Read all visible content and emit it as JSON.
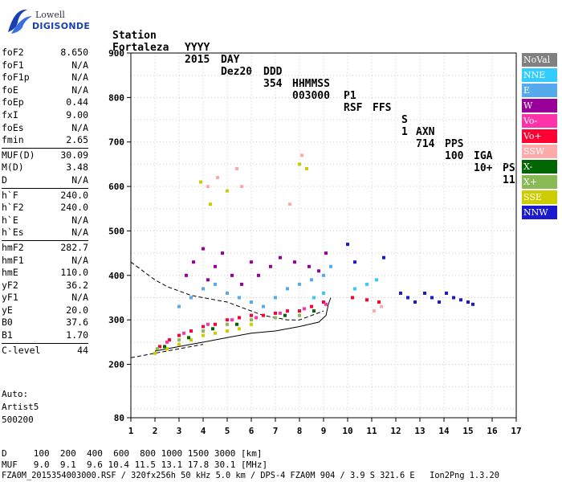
{
  "logo": {
    "line1": "Lowell",
    "line2": "DIGISONDE"
  },
  "header": {
    "labels": [
      "Station",
      "YYYY",
      "DAY",
      "DDD",
      "HHMMSS",
      "P1",
      "FFS",
      "S",
      "AXN",
      "PPS",
      "IGA",
      "PS"
    ],
    "values": [
      "Fortaleza",
      "2015",
      "Dez20",
      "354",
      "003000",
      "RSF",
      "",
      "1",
      "714",
      "100",
      "10+",
      "11"
    ]
  },
  "params": [
    {
      "label": "foF2",
      "value": "8.650"
    },
    {
      "label": "foF1",
      "value": "N/A"
    },
    {
      "label": "foF1p",
      "value": "N/A"
    },
    {
      "label": "foE",
      "value": "N/A"
    },
    {
      "label": "foEp",
      "value": "0.44"
    },
    {
      "label": "fxI",
      "value": "9.00"
    },
    {
      "label": "foEs",
      "value": "N/A"
    },
    {
      "label": "fmin",
      "value": "2.65"
    },
    {
      "label": "MUF(D)",
      "value": "30.09"
    },
    {
      "label": "M(D)",
      "value": "3.48"
    },
    {
      "label": "D",
      "value": "N/A"
    },
    {
      "label": "h`F",
      "value": "240.0"
    },
    {
      "label": "h`F2",
      "value": "240.0"
    },
    {
      "label": "h`E",
      "value": "N/A"
    },
    {
      "label": "h`Es",
      "value": "N/A"
    },
    {
      "label": "hmF2",
      "value": "282.7"
    },
    {
      "label": "hmF1",
      "value": "N/A"
    },
    {
      "label": "hmE",
      "value": "110.0"
    },
    {
      "label": "yF2",
      "value": "36.2"
    },
    {
      "label": "yF1",
      "value": "N/A"
    },
    {
      "label": "yE",
      "value": "20.0"
    },
    {
      "label": "B0",
      "value": "37.6"
    },
    {
      "label": "B1",
      "value": "1.70"
    },
    {
      "label": "C-level",
      "value": "44"
    }
  ],
  "auto": {
    "line1": "Auto:",
    "line2": "Artist5",
    "line3": "500200"
  },
  "footer": {
    "d_line": "D     100  200  400  600  800 1000 1500 3000 [km]",
    "muf_line": "MUF   9.0  9.1  9.6 10.4 11.5 13.1 17.8 30.1 [MHz]",
    "file_line": "FZA0M_2015354003000.RSF / 320fx256h 50 kHz 5.0 km / DPS-4 FZA0M 904 / 3.9 S 321.6 E   Ion2Png 1.3.20"
  },
  "legend": [
    {
      "label": "NoVal",
      "color": "#808080"
    },
    {
      "label": "NNE",
      "color": "#33ccff"
    },
    {
      "label": "E",
      "color": "#55aaee"
    },
    {
      "label": "W",
      "color": "#990099"
    },
    {
      "label": "Vo-",
      "color": "#ff33aa"
    },
    {
      "label": "Vo+",
      "color": "#ff0033"
    },
    {
      "label": "SSW",
      "color": "#ffaaaa"
    },
    {
      "label": "X-",
      "color": "#006600"
    },
    {
      "label": "X+",
      "color": "#88bb55"
    },
    {
      "label": "SSE",
      "color": "#cccc00"
    },
    {
      "label": "NNW",
      "color": "#1a1acc"
    }
  ],
  "chart_data": {
    "type": "scatter",
    "title": "",
    "xlabel": "",
    "ylabel": "",
    "xlim": [
      1,
      17
    ],
    "ylim": [
      80,
      900
    ],
    "x_ticks": [
      1,
      2,
      3,
      4,
      5,
      6,
      7,
      8,
      9,
      10,
      11,
      12,
      13,
      14,
      15,
      16,
      17
    ],
    "y_ticks": [
      80,
      200,
      300,
      400,
      500,
      600,
      700,
      800,
      900
    ],
    "grid": true,
    "series": [
      {
        "name": "W",
        "color": "#990099",
        "points": [
          [
            3.3,
            400
          ],
          [
            3.6,
            430
          ],
          [
            4.0,
            460
          ],
          [
            4.2,
            390
          ],
          [
            4.5,
            420
          ],
          [
            4.8,
            450
          ],
          [
            5.2,
            400
          ],
          [
            5.6,
            380
          ],
          [
            6.0,
            430
          ],
          [
            6.3,
            400
          ],
          [
            6.8,
            420
          ],
          [
            7.2,
            440
          ],
          [
            7.8,
            430
          ],
          [
            8.4,
            420
          ],
          [
            8.8,
            410
          ],
          [
            9.1,
            450
          ]
        ]
      },
      {
        "name": "E",
        "color": "#55aaee",
        "points": [
          [
            3.0,
            330
          ],
          [
            3.5,
            350
          ],
          [
            4.0,
            370
          ],
          [
            4.5,
            380
          ],
          [
            5.0,
            360
          ],
          [
            5.5,
            350
          ],
          [
            6.0,
            340
          ],
          [
            6.5,
            330
          ],
          [
            7.0,
            350
          ],
          [
            7.5,
            370
          ],
          [
            8.0,
            380
          ],
          [
            8.5,
            390
          ],
          [
            9.0,
            400
          ],
          [
            9.3,
            420
          ]
        ]
      },
      {
        "name": "NNE",
        "color": "#33ccff",
        "points": [
          [
            8.6,
            350
          ],
          [
            9.0,
            360
          ],
          [
            10.3,
            370
          ],
          [
            10.8,
            380
          ],
          [
            11.2,
            390
          ]
        ]
      },
      {
        "name": "Vo+",
        "color": "#ff0033",
        "points": [
          [
            2.2,
            240
          ],
          [
            2.6,
            255
          ],
          [
            3.0,
            265
          ],
          [
            3.5,
            275
          ],
          [
            4.0,
            285
          ],
          [
            4.5,
            290
          ],
          [
            5.0,
            300
          ],
          [
            5.5,
            305
          ],
          [
            6.0,
            310
          ],
          [
            6.5,
            310
          ],
          [
            7.0,
            315
          ],
          [
            7.5,
            320
          ],
          [
            8.0,
            320
          ],
          [
            8.5,
            330
          ],
          [
            9.0,
            340
          ],
          [
            10.2,
            350
          ],
          [
            10.8,
            345
          ],
          [
            11.3,
            340
          ]
        ]
      },
      {
        "name": "Vo-",
        "color": "#ff33aa",
        "points": [
          [
            2.5,
            250
          ],
          [
            3.2,
            270
          ],
          [
            4.2,
            290
          ],
          [
            5.2,
            300
          ],
          [
            6.2,
            305
          ],
          [
            7.2,
            315
          ],
          [
            8.2,
            325
          ],
          [
            9.1,
            335
          ]
        ]
      },
      {
        "name": "SSE",
        "color": "#cccc00",
        "points": [
          [
            2.0,
            225
          ],
          [
            2.5,
            235
          ],
          [
            3.0,
            245
          ],
          [
            3.5,
            255
          ],
          [
            4.0,
            265
          ],
          [
            4.5,
            270
          ],
          [
            5.0,
            275
          ],
          [
            5.5,
            280
          ],
          [
            6.0,
            290
          ],
          [
            3.9,
            610
          ],
          [
            4.3,
            560
          ],
          [
            5.0,
            590
          ],
          [
            8.0,
            650
          ],
          [
            8.3,
            640
          ]
        ]
      },
      {
        "name": "X+",
        "color": "#88bb55",
        "points": [
          [
            2.1,
            235
          ],
          [
            3.0,
            255
          ],
          [
            4.0,
            275
          ],
          [
            5.0,
            290
          ],
          [
            6.0,
            300
          ],
          [
            7.0,
            305
          ],
          [
            8.0,
            310
          ]
        ]
      },
      {
        "name": "X-",
        "color": "#006600",
        "points": [
          [
            2.4,
            240
          ],
          [
            3.4,
            260
          ],
          [
            4.4,
            280
          ],
          [
            5.4,
            290
          ],
          [
            7.4,
            310
          ],
          [
            8.6,
            320
          ]
        ]
      },
      {
        "name": "SSW",
        "color": "#ffaaaa",
        "points": [
          [
            4.2,
            600
          ],
          [
            4.6,
            620
          ],
          [
            5.4,
            640
          ],
          [
            5.6,
            600
          ],
          [
            7.6,
            560
          ],
          [
            8.1,
            670
          ],
          [
            11.1,
            320
          ],
          [
            11.4,
            330
          ]
        ]
      },
      {
        "name": "NNW",
        "color": "#1a1acc",
        "points": [
          [
            12.2,
            360
          ],
          [
            12.5,
            350
          ],
          [
            12.8,
            340
          ],
          [
            13.2,
            360
          ],
          [
            13.5,
            350
          ],
          [
            13.8,
            340
          ],
          [
            14.1,
            360
          ],
          [
            14.4,
            350
          ],
          [
            14.7,
            345
          ],
          [
            15.0,
            340
          ],
          [
            15.2,
            335
          ],
          [
            10.0,
            470
          ],
          [
            10.3,
            430
          ],
          [
            11.5,
            440
          ]
        ]
      }
    ],
    "lines": [
      {
        "name": "dashed-curve",
        "style": "dashed",
        "points": [
          [
            1,
            430
          ],
          [
            1.5,
            410
          ],
          [
            2,
            390
          ],
          [
            2.5,
            375
          ],
          [
            3,
            365
          ],
          [
            3.5,
            355
          ],
          [
            4,
            350
          ],
          [
            4.5,
            345
          ],
          [
            5,
            340
          ],
          [
            5.5,
            330
          ],
          [
            6,
            320
          ],
          [
            6.5,
            310
          ],
          [
            7,
            305
          ],
          [
            7.5,
            300
          ],
          [
            8,
            300
          ],
          [
            8.5,
            310
          ],
          [
            9,
            320
          ]
        ]
      },
      {
        "name": "dashed-lower",
        "style": "dashed",
        "points": [
          [
            1,
            215
          ],
          [
            2,
            225
          ],
          [
            3,
            235
          ],
          [
            4,
            245
          ]
        ]
      },
      {
        "name": "solid-trace",
        "style": "solid",
        "points": [
          [
            2,
            230
          ],
          [
            3,
            240
          ],
          [
            4,
            250
          ],
          [
            5,
            260
          ],
          [
            6,
            270
          ],
          [
            7,
            275
          ],
          [
            8,
            285
          ],
          [
            8.8,
            295
          ],
          [
            9.1,
            310
          ],
          [
            9.2,
            335
          ],
          [
            9.3,
            350
          ]
        ]
      }
    ]
  }
}
